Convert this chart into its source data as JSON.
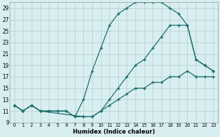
{
  "xlabel": "Humidex (Indice chaleur)",
  "bg_color": "#d8eef0",
  "grid_color": "#b0cccc",
  "line_color": "#1a6b6b",
  "xlim": [
    -0.5,
    23.5
  ],
  "ylim": [
    9,
    30
  ],
  "xticks": [
    0,
    1,
    2,
    3,
    4,
    5,
    6,
    7,
    8,
    9,
    10,
    11,
    12,
    13,
    14,
    15,
    16,
    17,
    18,
    19,
    20,
    21,
    22,
    23
  ],
  "yticks": [
    9,
    11,
    13,
    15,
    17,
    19,
    21,
    23,
    25,
    27,
    29
  ],
  "line1_x": [
    0,
    1,
    2,
    3,
    4,
    5,
    6,
    7,
    8,
    9,
    10,
    11,
    12,
    13,
    14,
    15,
    16,
    17,
    18,
    19,
    20,
    21,
    22,
    23
  ],
  "line1_y": [
    12,
    11,
    12,
    11,
    11,
    11,
    11,
    10,
    13,
    18,
    22,
    26,
    28,
    29,
    30,
    30,
    30,
    30,
    29,
    28,
    26,
    20,
    19,
    18
  ],
  "line2_x": [
    0,
    1,
    2,
    3,
    4,
    5,
    6,
    7,
    8,
    9,
    10,
    11,
    12,
    13,
    14,
    15,
    16,
    17,
    18,
    19,
    20,
    21,
    22,
    23
  ],
  "line2_y": [
    12,
    11,
    12,
    11,
    11,
    11,
    11,
    10,
    10,
    10,
    11,
    12,
    13,
    14,
    15,
    15,
    16,
    16,
    17,
    17,
    18,
    17,
    17,
    17
  ],
  "line3_x": [
    0,
    1,
    2,
    3,
    8,
    9,
    10,
    11,
    12,
    13,
    14,
    15,
    16,
    17,
    18,
    19,
    20,
    21,
    22,
    23
  ],
  "line3_y": [
    12,
    11,
    12,
    11,
    10,
    10,
    11,
    13,
    15,
    17,
    19,
    20,
    22,
    24,
    26,
    26,
    26,
    20,
    19,
    18
  ]
}
